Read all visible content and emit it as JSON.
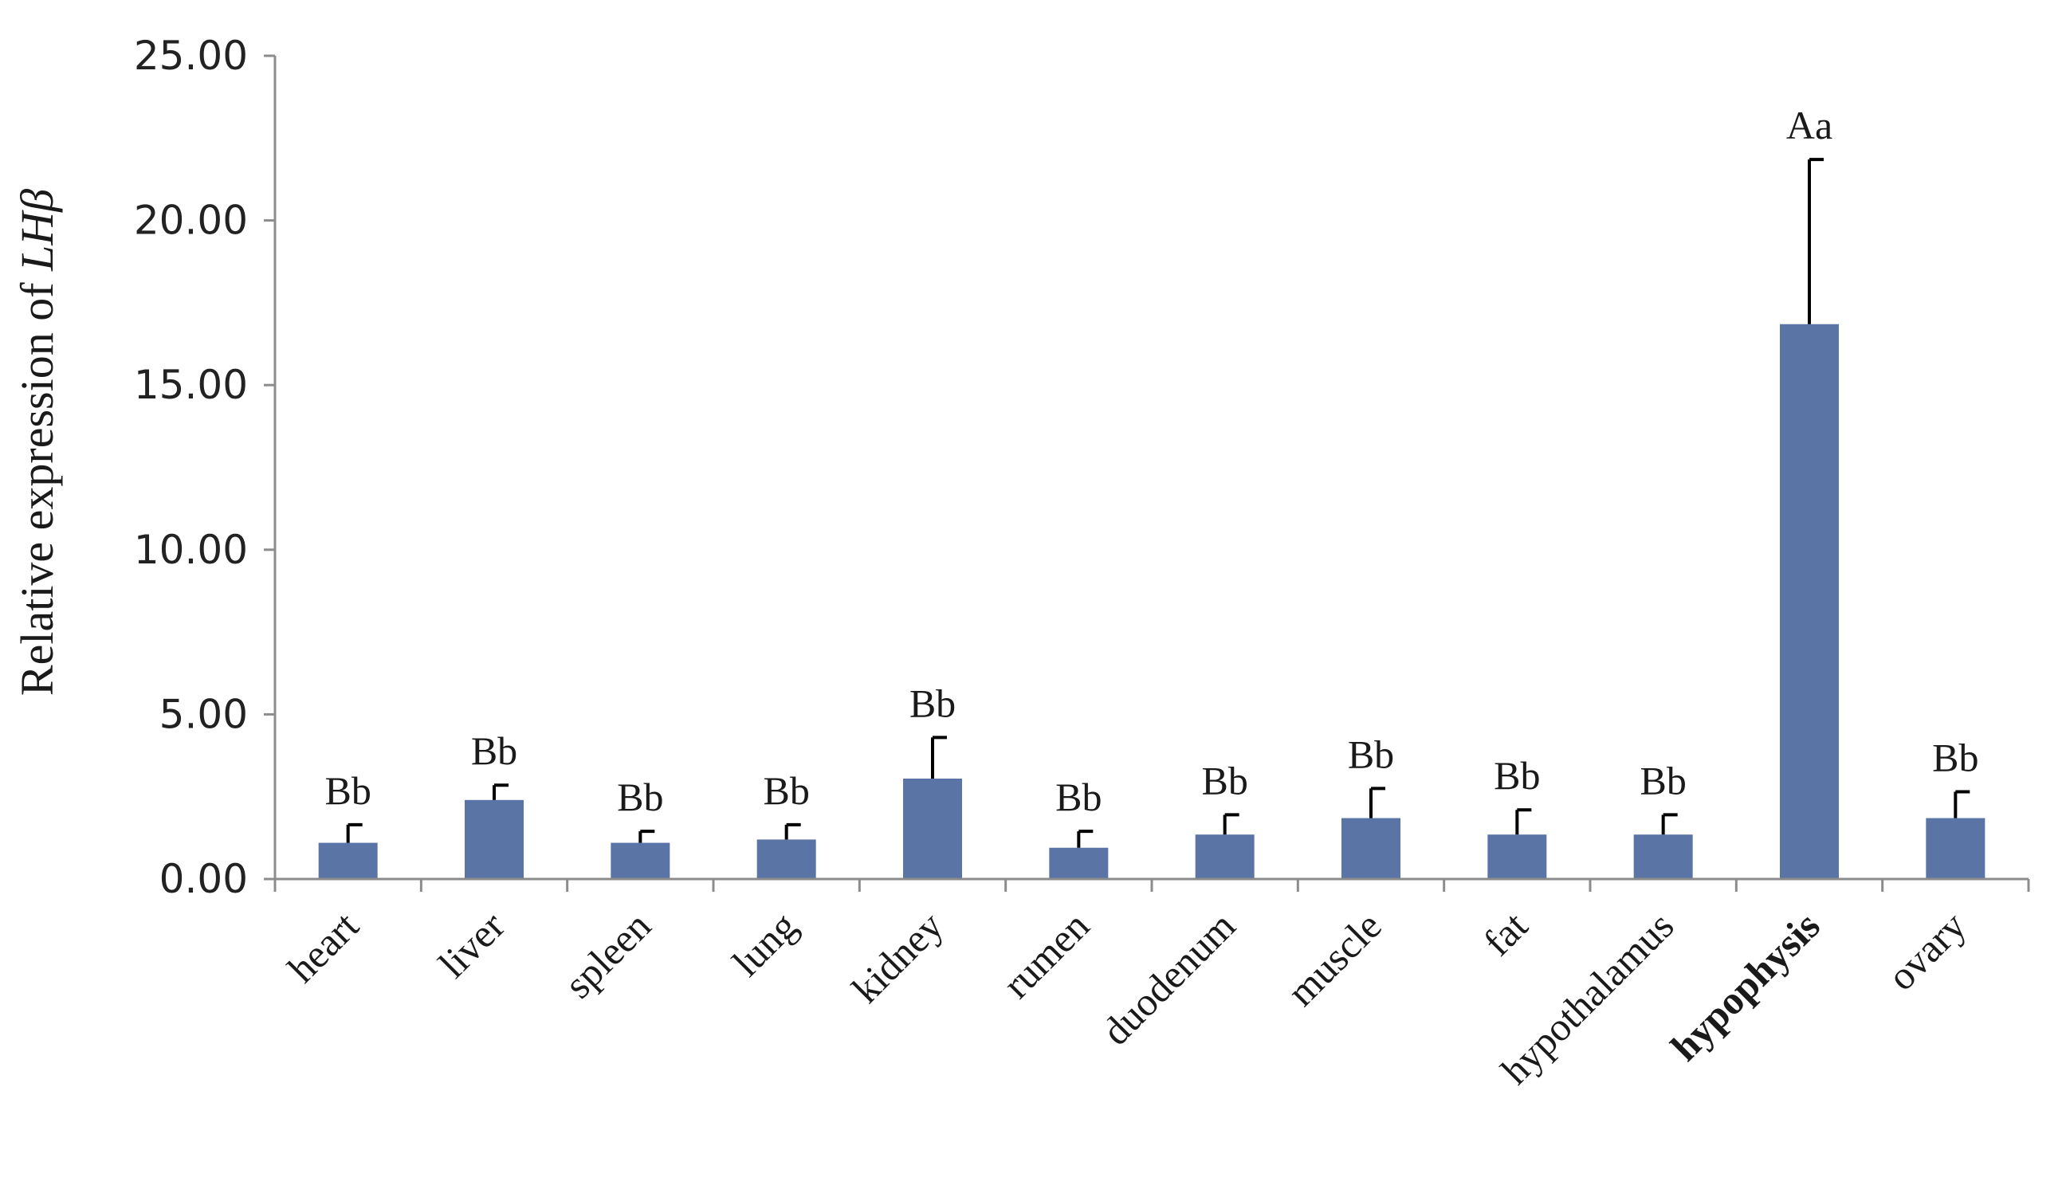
{
  "chart_data": {
    "type": "bar",
    "categories": [
      "heart",
      "liver",
      "spleen",
      "lung",
      "kidney",
      "rumen",
      "duodenum",
      "muscle",
      "fat",
      "hypothalamus",
      "hypophysis",
      "ovary"
    ],
    "highlighted_category": "hypophysis",
    "series": [
      {
        "values": [
          1.1,
          2.4,
          1.1,
          1.2,
          3.05,
          0.95,
          1.35,
          1.85,
          1.35,
          1.35,
          16.85,
          1.85
        ],
        "error": [
          0.55,
          0.45,
          0.35,
          0.45,
          1.25,
          0.5,
          0.6,
          0.9,
          0.75,
          0.6,
          5.0,
          0.8
        ],
        "labels": [
          "Bb",
          "Bb",
          "Bb",
          "Bb",
          "Bb",
          "Bb",
          "Bb",
          "Bb",
          "Bb",
          "Bb",
          "Aa",
          "Bb"
        ]
      }
    ],
    "ylabel_prefix": "Relative expression of ",
    "ylabel_gene": "LHβ",
    "xlabel": "",
    "ylim": [
      0,
      25
    ],
    "yticks": [
      "0.00",
      "5.00",
      "10.00",
      "15.00",
      "20.00",
      "25.00"
    ],
    "ytick_values": [
      0,
      5,
      10,
      15,
      20,
      25
    ],
    "grid": false,
    "colors": {
      "bar": "#5b74a6",
      "error_bar": "#000000",
      "axis": "#8c8c8c"
    }
  }
}
